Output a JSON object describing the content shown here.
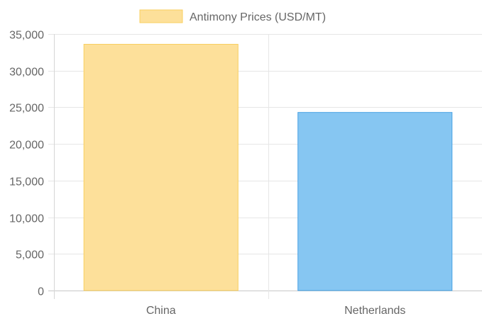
{
  "chart_data": {
    "type": "bar",
    "categories": [
      "China",
      "Netherlands"
    ],
    "series": [
      {
        "name": "Antimony Prices (USD/MT)",
        "values": [
          33600,
          24300
        ],
        "colors": [
          "#fde09a",
          "#86c6f2"
        ],
        "border_colors": [
          "#f9cf60",
          "#4aa3e4"
        ]
      }
    ],
    "ylim": [
      0,
      35000
    ],
    "y_ticks": [
      "35,000",
      "30,000",
      "25,000",
      "20,000",
      "15,000",
      "10,000",
      "5,000",
      "0"
    ],
    "grid": true,
    "legend_position": "top-center",
    "legend_swatch_color": "#fde09a",
    "legend_swatch_border": "#f9cf60"
  }
}
